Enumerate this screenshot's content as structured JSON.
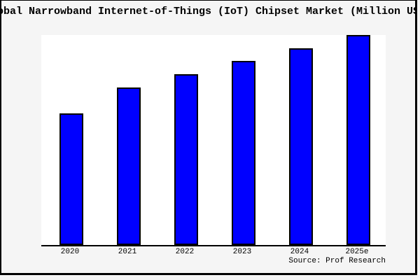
{
  "colors": {
    "figure_background": "#f5f5f5",
    "plot_background": "#ffffff",
    "frame_border": "#000000",
    "bar_fill": "#0000ff",
    "bar_border": "#000000",
    "axis_line": "#000000",
    "text": "#000000"
  },
  "chart_data": {
    "type": "bar",
    "title": "Global Narrowband Internet-of-Things (IoT) Chipset Market (Million US$)",
    "title_visible_clipped": "obal Narrowband Internet-of-Things (IoT) Chipset Market (Million US",
    "source": "Source: Prof Research",
    "categories": [
      "2020",
      "2021",
      "2022",
      "2023",
      "2024",
      "2025e"
    ],
    "values": [
      62.7,
      75.0,
      81.3,
      87.7,
      93.7,
      100.0
    ],
    "unit_note": "no y-axis or value labels shown; values are relative bar heights with 2025e = 100",
    "xlabel": "",
    "ylabel": "",
    "ylim": [
      0,
      100
    ],
    "grid": false,
    "legend": false,
    "y_axis_visible": false,
    "bar_color": "#0000ff"
  }
}
